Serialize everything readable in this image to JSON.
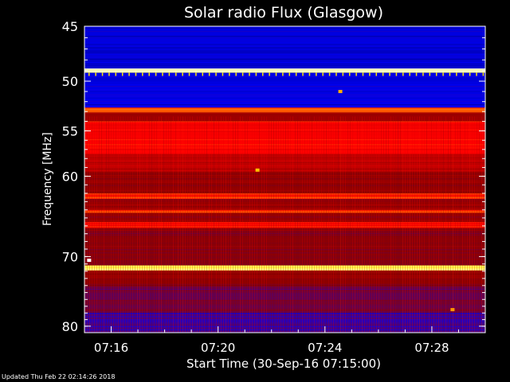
{
  "chart_data": {
    "type": "heatmap",
    "title": "Solar radio Flux (Glasgow)",
    "xlabel": "Start Time (30-Sep-16 07:15:00)",
    "ylabel": "Frequency [MHz]",
    "x_range_minutes": [
      0,
      15
    ],
    "x_ticks": [
      {
        "minute": 1,
        "label": "07:16"
      },
      {
        "minute": 5,
        "label": "07:20"
      },
      {
        "minute": 9,
        "label": "07:24"
      },
      {
        "minute": 13,
        "label": "07:28"
      }
    ],
    "ylim": [
      45,
      81
    ],
    "y_scale": "log",
    "y_axis_inverted": true,
    "y_ticks": [
      {
        "value": 45,
        "label": "45"
      },
      {
        "value": 50,
        "label": "50"
      },
      {
        "value": 55,
        "label": "55"
      },
      {
        "value": 60,
        "label": "60"
      },
      {
        "value": 70,
        "label": "70"
      },
      {
        "value": 80,
        "label": "80"
      }
    ],
    "colormap": [
      "#00008b",
      "#0000ff",
      "#5a0064",
      "#8c0000",
      "#c80000",
      "#ff0000",
      "#ff7800",
      "#ffff00",
      "#ffffff"
    ],
    "bands": [
      {
        "f0": 45.0,
        "f1": 48.8,
        "level": 0.08
      },
      {
        "f0": 48.8,
        "f1": 49.2,
        "level": 0.95
      },
      {
        "f0": 49.2,
        "f1": 52.6,
        "level": 0.1
      },
      {
        "f0": 52.6,
        "f1": 53.1,
        "level": 0.72
      },
      {
        "f0": 53.1,
        "f1": 54.0,
        "level": 0.42
      },
      {
        "f0": 54.0,
        "f1": 57.5,
        "level": 0.62
      },
      {
        "f0": 57.5,
        "f1": 59.5,
        "level": 0.48
      },
      {
        "f0": 59.5,
        "f1": 62.0,
        "level": 0.38
      },
      {
        "f0": 62.0,
        "f1": 62.7,
        "level": 0.66
      },
      {
        "f0": 62.7,
        "f1": 64.0,
        "level": 0.4
      },
      {
        "f0": 64.0,
        "f1": 64.4,
        "level": 0.68
      },
      {
        "f0": 64.4,
        "f1": 65.5,
        "level": 0.4
      },
      {
        "f0": 65.5,
        "f1": 66.3,
        "level": 0.6
      },
      {
        "f0": 66.3,
        "f1": 71.2,
        "level": 0.36
      },
      {
        "f0": 71.2,
        "f1": 71.9,
        "level": 0.93
      },
      {
        "f0": 71.9,
        "f1": 74.0,
        "level": 0.38
      },
      {
        "f0": 74.0,
        "f1": 78.0,
        "level": 0.3
      },
      {
        "f0": 78.0,
        "f1": 81.0,
        "level": 0.2
      }
    ],
    "events": [
      {
        "minute": 9.5,
        "freq": 51.0,
        "level": 0.8
      },
      {
        "minute": 6.4,
        "freq": 59.3,
        "level": 0.82
      },
      {
        "minute": 13.7,
        "freq": 77.5,
        "level": 0.78
      },
      {
        "minute": 0.1,
        "freq": 70.5,
        "level": 1.0
      }
    ],
    "grid": false,
    "legend": "none"
  },
  "footer": {
    "updated": "Updated Thu Feb 22 02:14:26 2018"
  }
}
